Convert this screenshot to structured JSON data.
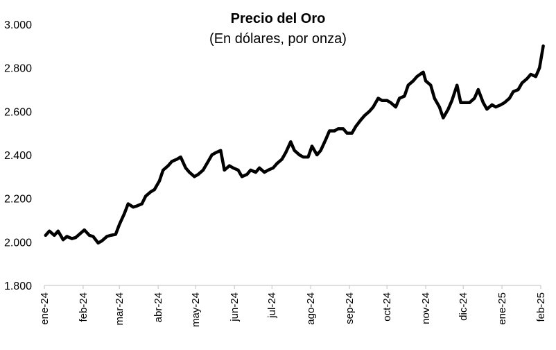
{
  "chart_data": {
    "type": "line",
    "title": "Precio del Oro",
    "subtitle": "(En dólares, por onza)",
    "xlabel": "",
    "ylabel": "",
    "ylim": [
      1800,
      3000
    ],
    "y_ticks": [
      1800,
      2000,
      2200,
      2400,
      2600,
      2800,
      3000
    ],
    "y_tick_labels": [
      "1.800",
      "2.000",
      "2.200",
      "2.400",
      "2.600",
      "2.800",
      "3.000"
    ],
    "x_ticks": [
      "2024-01-01",
      "2024-02-01",
      "2024-03-01",
      "2024-04-01",
      "2024-05-01",
      "2024-06-01",
      "2024-07-01",
      "2024-08-01",
      "2024-09-01",
      "2024-10-01",
      "2024-11-01",
      "2024-12-01",
      "2025-01-01",
      "2025-02-01"
    ],
    "x_tick_labels": [
      "ene-24",
      "feb-24",
      "mar-24",
      "abr-24",
      "may-24",
      "jun-24",
      "jul-24",
      "ago-24",
      "sep-24",
      "oct-24",
      "nov-24",
      "dic-24",
      "ene-25",
      "feb-25"
    ],
    "grid": false,
    "legend": "none",
    "line_color": "#000000",
    "series": [
      {
        "x": [
          "2024-01-02",
          "2024-01-05",
          "2024-01-09",
          "2024-01-12",
          "2024-01-16",
          "2024-01-19",
          "2024-01-23",
          "2024-01-26",
          "2024-01-30",
          "2024-02-02",
          "2024-02-06",
          "2024-02-09",
          "2024-02-13",
          "2024-02-16",
          "2024-02-20",
          "2024-02-23",
          "2024-02-27",
          "2024-03-01",
          "2024-03-05",
          "2024-03-08",
          "2024-03-12",
          "2024-03-15",
          "2024-03-19",
          "2024-03-22",
          "2024-03-26",
          "2024-03-29",
          "2024-04-02",
          "2024-04-05",
          "2024-04-09",
          "2024-04-12",
          "2024-04-16",
          "2024-04-19",
          "2024-04-23",
          "2024-04-26",
          "2024-04-30",
          "2024-05-03",
          "2024-05-07",
          "2024-05-10",
          "2024-05-14",
          "2024-05-17",
          "2024-05-21",
          "2024-05-24",
          "2024-05-28",
          "2024-05-31",
          "2024-06-04",
          "2024-06-07",
          "2024-06-11",
          "2024-06-14",
          "2024-06-18",
          "2024-06-21",
          "2024-06-25",
          "2024-06-28",
          "2024-07-02",
          "2024-07-05",
          "2024-07-09",
          "2024-07-12",
          "2024-07-16",
          "2024-07-19",
          "2024-07-23",
          "2024-07-26",
          "2024-07-30",
          "2024-08-02",
          "2024-08-06",
          "2024-08-09",
          "2024-08-13",
          "2024-08-16",
          "2024-08-20",
          "2024-08-23",
          "2024-08-27",
          "2024-08-30",
          "2024-09-03",
          "2024-09-06",
          "2024-09-10",
          "2024-09-13",
          "2024-09-17",
          "2024-09-20",
          "2024-09-24",
          "2024-09-27",
          "2024-10-01",
          "2024-10-04",
          "2024-10-08",
          "2024-10-11",
          "2024-10-15",
          "2024-10-18",
          "2024-10-22",
          "2024-10-25",
          "2024-10-30",
          "2024-11-01",
          "2024-11-05",
          "2024-11-08",
          "2024-11-12",
          "2024-11-15",
          "2024-11-19",
          "2024-11-22",
          "2024-11-26",
          "2024-11-29",
          "2024-12-03",
          "2024-12-06",
          "2024-12-10",
          "2024-12-13",
          "2024-12-17",
          "2024-12-20",
          "2024-12-24",
          "2024-12-27",
          "2024-12-31",
          "2025-01-03",
          "2025-01-07",
          "2025-01-10",
          "2025-01-14",
          "2025-01-17",
          "2025-01-21",
          "2025-01-24",
          "2025-01-28",
          "2025-01-31",
          "2025-02-03"
        ],
        "values": [
          2030,
          2050,
          2030,
          2050,
          2010,
          2025,
          2015,
          2020,
          2040,
          2055,
          2030,
          2025,
          1995,
          2005,
          2025,
          2030,
          2035,
          2080,
          2130,
          2175,
          2160,
          2165,
          2175,
          2210,
          2230,
          2240,
          2280,
          2330,
          2350,
          2370,
          2380,
          2390,
          2340,
          2320,
          2300,
          2310,
          2330,
          2360,
          2400,
          2410,
          2420,
          2330,
          2350,
          2340,
          2330,
          2300,
          2310,
          2330,
          2320,
          2340,
          2320,
          2330,
          2340,
          2360,
          2380,
          2410,
          2460,
          2420,
          2400,
          2390,
          2390,
          2440,
          2400,
          2420,
          2470,
          2510,
          2510,
          2520,
          2520,
          2500,
          2500,
          2530,
          2560,
          2580,
          2600,
          2620,
          2660,
          2650,
          2650,
          2640,
          2620,
          2660,
          2670,
          2720,
          2740,
          2760,
          2780,
          2740,
          2720,
          2660,
          2620,
          2570,
          2610,
          2650,
          2720,
          2640,
          2640,
          2640,
          2660,
          2700,
          2640,
          2610,
          2630,
          2620,
          2630,
          2640,
          2660,
          2690,
          2700,
          2730,
          2750,
          2770,
          2760,
          2800,
          2900
        ]
      }
    ]
  }
}
